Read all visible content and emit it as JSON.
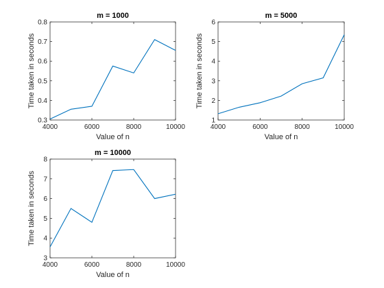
{
  "chart_data": [
    {
      "type": "line",
      "title": "m = 1000",
      "xlabel": "Value of n",
      "ylabel": "Time taken in seconds",
      "xlim": [
        4000,
        10000
      ],
      "ylim": [
        0.3,
        0.8
      ],
      "xticks": [
        "4000",
        "6000",
        "8000",
        "10000"
      ],
      "yticks": [
        "0.3",
        "0.4",
        "0.5",
        "0.6",
        "0.7",
        "0.8"
      ],
      "grid": false,
      "x": [
        4000,
        5000,
        6000,
        7000,
        8000,
        9000,
        10000
      ],
      "series": [
        {
          "values": [
            0.305,
            0.355,
            0.37,
            0.575,
            0.54,
            0.71,
            0.655
          ],
          "color": "#0072bd"
        }
      ]
    },
    {
      "type": "line",
      "title": "m = 5000",
      "xlabel": "Value of n",
      "ylabel": "Time taken in seconds",
      "xlim": [
        4000,
        10000
      ],
      "ylim": [
        1,
        6
      ],
      "xticks": [
        "4000",
        "6000",
        "8000",
        "10000"
      ],
      "yticks": [
        "1",
        "2",
        "3",
        "4",
        "5",
        "6"
      ],
      "grid": false,
      "x": [
        4000,
        5000,
        6000,
        7000,
        8000,
        9000,
        10000
      ],
      "series": [
        {
          "values": [
            1.32,
            1.65,
            1.88,
            2.22,
            2.85,
            3.15,
            5.35
          ],
          "color": "#0072bd"
        }
      ]
    },
    {
      "type": "line",
      "title": "m = 10000",
      "xlabel": "Value of n",
      "ylabel": "Time taken in seconds",
      "xlim": [
        4000,
        10000
      ],
      "ylim": [
        3,
        8
      ],
      "xticks": [
        "4000",
        "6000",
        "8000",
        "10000"
      ],
      "yticks": [
        "3",
        "4",
        "5",
        "6",
        "7",
        "8"
      ],
      "grid": false,
      "x": [
        4000,
        5000,
        6000,
        7000,
        8000,
        9000,
        10000
      ],
      "series": [
        {
          "values": [
            3.55,
            5.5,
            4.8,
            7.42,
            7.47,
            6.0,
            6.22
          ],
          "color": "#0072bd"
        }
      ]
    }
  ]
}
